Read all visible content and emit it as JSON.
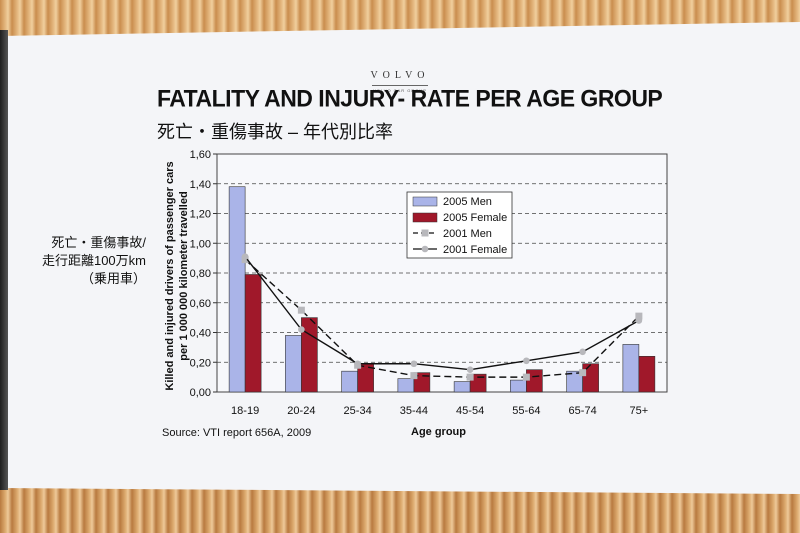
{
  "slide": {
    "logo": "VOLVO",
    "logo_sub": "VOLVO CAR GROUP",
    "title": "FATALITY AND INJURY- RATE PER AGE GROUP",
    "subtitle": "死亡・重傷事故 – 年代別比率",
    "side_label": [
      "死亡・重傷事故/",
      "走行距離100万km",
      "（乗用車）"
    ],
    "source": "Source: VTI report 656A, 2009"
  },
  "colors": {
    "men_2005": "#aab4e8",
    "female_2005": "#a0182a",
    "line_2001": "#111111",
    "marker_2001": "#b8b8bc"
  },
  "chart_data": {
    "type": "bar",
    "categories": [
      "18-19",
      "20-24",
      "25-34",
      "35-44",
      "45-54",
      "55-64",
      "65-74",
      "75+"
    ],
    "xlabel": "Age group",
    "ylabel": [
      "Killed and injured drivers of passenger cars",
      "per 1 000 000 kilometer travelled"
    ],
    "ylim": [
      0,
      1.6
    ],
    "yticks": [
      "0,00",
      "0,20",
      "0,40",
      "0,60",
      "0,80",
      "1,00",
      "1,20",
      "1,40",
      "1,60"
    ],
    "grid": "horizontal dashed",
    "legend_position": "upper-right",
    "series": [
      {
        "name": "2005 Men",
        "kind": "bar",
        "values": [
          1.38,
          0.38,
          0.14,
          0.09,
          0.07,
          0.08,
          0.14,
          0.32
        ]
      },
      {
        "name": "2005 Female",
        "kind": "bar",
        "values": [
          0.79,
          0.5,
          0.19,
          0.13,
          0.12,
          0.15,
          0.19,
          0.24
        ]
      },
      {
        "name": "2001 Men",
        "kind": "line",
        "dash": "dashed",
        "values": [
          0.89,
          0.55,
          0.18,
          0.11,
          0.1,
          0.1,
          0.13,
          0.51
        ]
      },
      {
        "name": "2001 Female",
        "kind": "line",
        "dash": "solid",
        "values": [
          0.91,
          0.42,
          0.19,
          0.19,
          0.15,
          0.21,
          0.27,
          0.48
        ]
      }
    ]
  }
}
